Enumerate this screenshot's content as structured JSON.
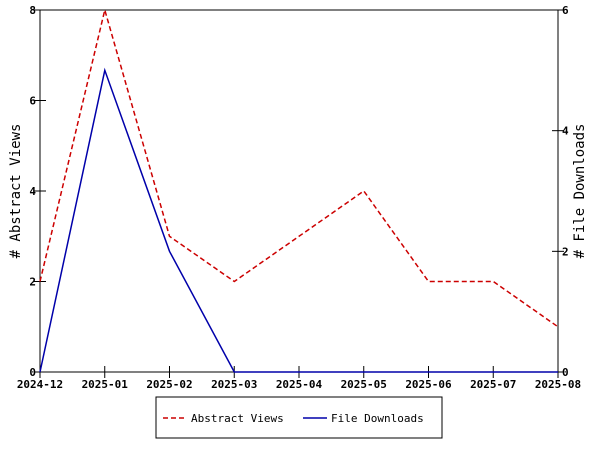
{
  "chart_data": {
    "type": "line",
    "categories": [
      "2024-12",
      "2025-01",
      "2025-02",
      "2025-03",
      "2025-04",
      "2025-05",
      "2025-06",
      "2025-07",
      "2025-08"
    ],
    "series": [
      {
        "name": "Abstract Views",
        "axis": "left",
        "values": [
          2,
          8,
          3,
          2,
          3,
          4,
          2,
          2,
          1
        ],
        "color": "#cc0000",
        "style": "dashed"
      },
      {
        "name": "File Downloads",
        "axis": "right",
        "values": [
          0,
          5,
          2,
          0,
          0,
          0,
          0,
          0,
          0
        ],
        "color": "#0000aa",
        "style": "solid"
      }
    ],
    "ylabel": "# Abstract Views",
    "ylabel_right": "# File Downloads",
    "ylim": [
      0,
      8
    ],
    "ylim_right": [
      0,
      6
    ],
    "yticks": [
      "0",
      "2",
      "4",
      "6",
      "8"
    ],
    "yticks_right": [
      "0",
      "2",
      "4",
      "6"
    ],
    "grid": false,
    "legend": "bottom-center"
  }
}
